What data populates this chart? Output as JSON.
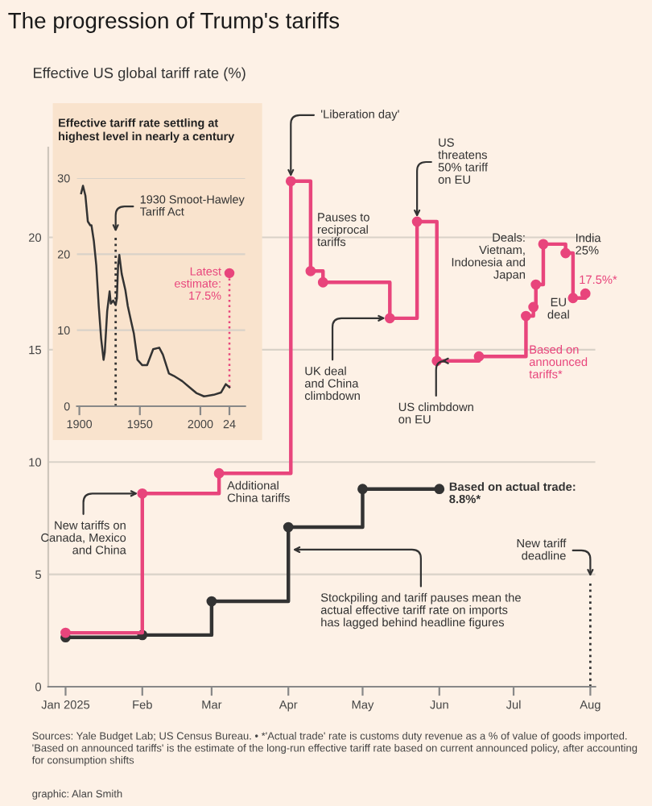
{
  "chart_data": [
    {
      "type": "step",
      "title": "The progression of Trump's tariffs",
      "subtitle": "Effective US global tariff rate (%)",
      "series": [
        {
          "name": "Based on\nannounced\ntariffs*",
          "color": "#e8457c",
          "x": [
            "2025-01-01",
            "2025-02-01",
            "2025-03-04",
            "2025-04-02",
            "2025-04-10",
            "2025-04-15",
            "2025-05-12",
            "2025-05-23",
            "2025-05-31",
            "2025-06-17",
            "2025-07-06",
            "2025-07-09",
            "2025-07-10",
            "2025-07-13",
            "2025-07-22",
            "2025-07-25",
            "2025-07-30"
          ],
          "values": [
            2.4,
            8.6,
            9.5,
            22.5,
            18.5,
            18.0,
            16.4,
            20.7,
            14.5,
            14.7,
            16.5,
            16.9,
            17.9,
            19.7,
            19.3,
            17.3,
            17.5
          ]
        },
        {
          "name": "Based on actual trade:\n8.8%*",
          "color": "#333333",
          "x": [
            "2025-01-01",
            "2025-02-01",
            "2025-03-01",
            "2025-04-01",
            "2025-05-01",
            "2025-06-01"
          ],
          "values": [
            2.2,
            2.3,
            3.8,
            7.1,
            8.8,
            8.8
          ]
        }
      ],
      "xlim": [
        "2024-12-25",
        "2025-08-03"
      ],
      "xticks": [
        {
          "value": "2025-01-01",
          "label": "Jan 2025"
        },
        {
          "value": "2025-02-01",
          "label": "Feb"
        },
        {
          "value": "2025-03-01",
          "label": "Mar"
        },
        {
          "value": "2025-04-01",
          "label": "Apr"
        },
        {
          "value": "2025-05-01",
          "label": "May"
        },
        {
          "value": "2025-06-01",
          "label": "Jun"
        },
        {
          "value": "2025-07-01",
          "label": "Jul"
        },
        {
          "value": "2025-08-01",
          "label": "Aug"
        }
      ],
      "ylim": [
        0,
        24
      ],
      "yticks": [
        0,
        5,
        10,
        15,
        20
      ],
      "grid": "y",
      "marker": "circle",
      "ref_lines": [
        {
          "axis": "x",
          "value": "2025-08-01",
          "label": "New tariff\ndeadline",
          "line_style": "dotted",
          "color": "#333333"
        }
      ],
      "annotations": [
        {
          "text": "'Liberation day'",
          "x": "2025-04-02",
          "y": 22.5
        },
        "Pauses to\nreciprocal\ntariffs",
        {
          "text": "UK deal\nand China\nclimbdown",
          "x": "2025-05-12",
          "y": 16.4
        },
        {
          "text": "US\nthreatens\n50% tariff\non EU",
          "x": "2025-05-23",
          "y": 20.7
        },
        {
          "text": "US climbdown\non EU",
          "x": "2025-05-31",
          "y": 14.5
        },
        {
          "text": "Deals:\nVietnam,\nIndonesia and\nJapan",
          "x": "2025-07-13",
          "y": 19.7
        },
        {
          "text": "India\n25%",
          "x": "2025-07-22",
          "y": 19.3
        },
        {
          "text": "EU\ndeal",
          "x": "2025-07-25",
          "y": 17.3
        },
        {
          "text": "17.5%*",
          "x": "2025-07-30",
          "y": 17.5
        },
        {
          "text": "New tariffs on\nCanada, Mexico\nand China",
          "x": "2025-02-01",
          "y": 8.6
        },
        {
          "text": "Additional\nChina tariffs",
          "x": "2025-03-04",
          "y": 9.5
        },
        {
          "text": "Stockpiling and tariff pauses mean the\nactual effective tariff rate on imports\nhas lagged behind headline figures",
          "x": "2025-04-01",
          "y": 6.1
        },
        "Sources: Yale Budget Lab; US Census Bureau. • *'Actual trade' rate is customs duty revenue as a % of value of goods imported. 'Based on announced tariffs' is the estimate of the long-run effective tariff rate based on current announced policy, after accounting for consumption shifts",
        "graphic: Alan Smith"
      ]
    },
    {
      "type": "line",
      "title": "Effective tariff rate settling at\nhighest level in nearly a century",
      "series": [
        {
          "color": "#333333",
          "x": [
            1901.5,
            1903,
            1905,
            1907,
            1909,
            1910,
            1912,
            1914,
            1916,
            1918,
            1920,
            1921,
            1923,
            1925,
            1926,
            1928,
            1930,
            1931,
            1932,
            1933,
            1935,
            1938,
            1940,
            1943,
            1945,
            1948,
            1952,
            1956,
            1961,
            1966,
            1969,
            1974,
            1978,
            1982,
            1985,
            1991,
            1997,
            2003,
            2011,
            2017,
            2021,
            2024
          ],
          "values": [
            28.0,
            29.0,
            27.7,
            24.3,
            23.8,
            23.8,
            21.7,
            18.5,
            13.2,
            8.9,
            6.1,
            7.1,
            12.5,
            15.1,
            13.5,
            13.9,
            13.3,
            14.2,
            18.5,
            19.9,
            17.4,
            15.3,
            13.2,
            11.0,
            9.6,
            6.1,
            5.4,
            5.4,
            7.5,
            7.7,
            6.8,
            4.3,
            4.0,
            3.6,
            3.3,
            2.5,
            1.7,
            1.3,
            1.5,
            1.8,
            2.9,
            2.5
          ]
        },
        {
          "color": "#e8457c",
          "x": [
            2024,
            2024
          ],
          "values": [
            2.5,
            17.5
          ],
          "line_style": "dotted",
          "marker": "circle"
        }
      ],
      "xlim": [
        1898,
        2037
      ],
      "xticks": [
        1900,
        1950,
        2000,
        {
          "value": 2024,
          "label": "24"
        }
      ],
      "ylim": [
        0,
        30
      ],
      "yticks": [
        0,
        10,
        20,
        30
      ],
      "grid": "y",
      "ref_lines": [
        {
          "axis": "x",
          "value": 1930,
          "label": "1930 Smoot-Hawley\nTariff Act",
          "line_style": "dotted",
          "color": "#333333"
        }
      ],
      "annotations": [
        {
          "text": "Latest\nestimate:\n17.5%",
          "x": 2024,
          "y": 17.5
        }
      ]
    }
  ]
}
